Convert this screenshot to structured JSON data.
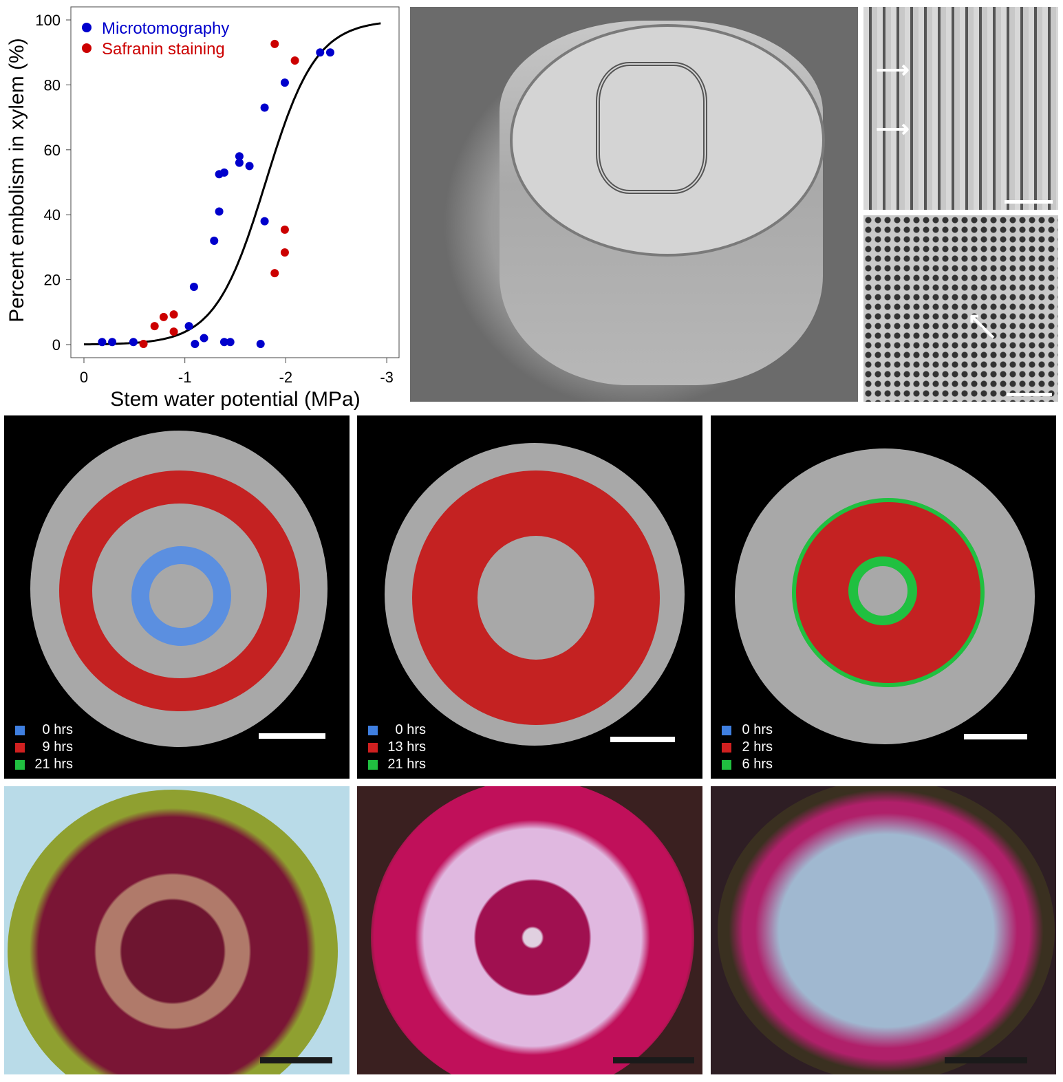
{
  "chart_data": {
    "type": "scatter",
    "xlabel": "Stem water potential (MPa)",
    "ylabel": "Percent embolism in xylem (%)",
    "xlim": [
      0,
      -3
    ],
    "ylim": [
      0,
      100
    ],
    "xticks": [
      "0",
      "-1",
      "-2",
      "-3"
    ],
    "xtick_values": [
      0,
      -1,
      -2,
      -3
    ],
    "yticks": [
      "0",
      "20",
      "40",
      "60",
      "80",
      "100"
    ],
    "ytick_values": [
      0,
      20,
      40,
      60,
      80,
      100
    ],
    "legend_position": "top-left",
    "series": [
      {
        "name": "Microtomography",
        "color": "#0000cc",
        "x": [
          -0.18,
          -0.28,
          -0.49,
          -1.04,
          -1.09,
          -1.1,
          -1.19,
          -1.29,
          -1.34,
          -1.34,
          -1.39,
          -1.39,
          -1.45,
          -1.54,
          -1.54,
          -1.64,
          -1.79,
          -1.79,
          -1.75,
          -1.99,
          -2.34,
          -2.44
        ],
        "y": [
          0.8,
          0.8,
          0.8,
          5.7,
          17.8,
          0.2,
          2,
          32,
          41,
          52.5,
          53,
          0.8,
          0.8,
          58,
          56,
          55,
          38,
          73,
          0.2,
          80.7,
          90,
          90
        ]
      },
      {
        "name": "Safranin staining",
        "color": "#cc0000",
        "x": [
          -0.59,
          -0.7,
          -0.79,
          -0.89,
          -0.89,
          -1.89,
          -2.09,
          -1.99,
          -1.99,
          -1.89
        ],
        "y": [
          0.2,
          5.7,
          8.5,
          9.3,
          4,
          92.6,
          87.5,
          35.4,
          28.4,
          22
        ]
      },
      {
        "name": "fit",
        "type": "line",
        "color": "#000000",
        "model": "sigmoid",
        "x50": -1.8,
        "slope": 4
      }
    ]
  },
  "ct_panels": [
    {
      "legend": [
        {
          "label": "0 hrs",
          "color": "#3f7fe0"
        },
        {
          "label": "9 hrs",
          "color": "#d02020"
        },
        {
          "label": "21 hrs",
          "color": "#20c040"
        }
      ]
    },
    {
      "legend": [
        {
          "label": "0 hrs",
          "color": "#3f7fe0"
        },
        {
          "label": "13 hrs",
          "color": "#d02020"
        },
        {
          "label": "21 hrs",
          "color": "#20c040"
        }
      ]
    },
    {
      "legend": [
        {
          "label": "0 hrs",
          "color": "#3f7fe0"
        },
        {
          "label": "2 hrs",
          "color": "#d02020"
        },
        {
          "label": "6 hrs",
          "color": "#20c040"
        }
      ]
    }
  ]
}
